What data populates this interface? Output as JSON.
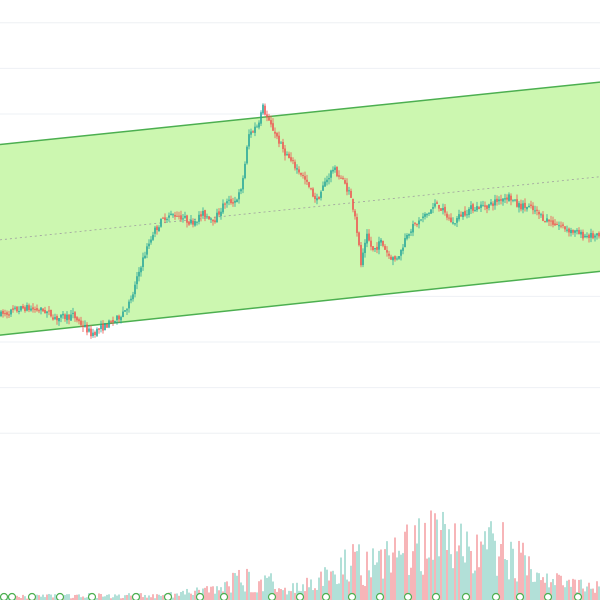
{
  "colors": {
    "background": "#ffffff",
    "grid": "#eef0f4",
    "up": "#26a69a",
    "down": "#ef5350",
    "channel_fill": "#ccf7b0",
    "channel_line": "#4caf50",
    "mid_line": "#9e9e9e",
    "volume_up": "#9fd9cf",
    "volume_down": "#f5a3a6",
    "marker": "#4caf50"
  },
  "chart_data": {
    "type": "candlestick",
    "title": "",
    "xlabel": "",
    "ylabel": "",
    "grid": true,
    "legend": "none",
    "ylim": [
      0,
      100
    ],
    "volume_ylim": [
      0,
      100
    ],
    "channel": {
      "upper": {
        "start": 68.3,
        "end": 82.0
      },
      "lower": {
        "start": 26.5,
        "end": 40.5
      }
    },
    "price_path": [
      [
        0,
        31
      ],
      [
        12,
        32.5
      ],
      [
        22,
        31.8
      ],
      [
        28,
        30.2
      ],
      [
        36,
        30.8
      ],
      [
        45,
        26.8
      ],
      [
        52,
        28.5
      ],
      [
        58,
        30
      ],
      [
        65,
        34
      ],
      [
        70,
        42
      ],
      [
        76,
        49
      ],
      [
        82,
        52.5
      ],
      [
        88,
        53
      ],
      [
        95,
        51.2
      ],
      [
        101,
        53
      ],
      [
        107,
        52
      ],
      [
        112,
        55.5
      ],
      [
        117,
        56
      ],
      [
        120,
        58
      ],
      [
        124,
        70.5
      ],
      [
        128,
        72.5
      ],
      [
        131,
        76.5
      ],
      [
        134,
        73
      ],
      [
        137,
        71
      ],
      [
        140,
        68
      ],
      [
        145,
        64.5
      ],
      [
        150,
        62
      ],
      [
        155,
        58
      ],
      [
        158,
        56
      ],
      [
        162,
        60
      ],
      [
        166,
        63
      ],
      [
        170,
        61
      ],
      [
        174,
        58
      ],
      [
        177,
        53
      ],
      [
        180,
        42
      ],
      [
        183,
        48
      ],
      [
        186,
        45
      ],
      [
        190,
        47
      ],
      [
        194,
        44
      ],
      [
        197,
        43
      ],
      [
        200,
        45
      ],
      [
        203,
        49
      ],
      [
        208,
        51
      ],
      [
        214,
        53.5
      ],
      [
        218,
        55.5
      ],
      [
        222,
        53
      ],
      [
        226,
        51
      ],
      [
        230,
        53
      ],
      [
        236,
        54.5
      ],
      [
        244,
        55
      ],
      [
        250,
        56.5
      ],
      [
        254,
        57
      ],
      [
        258,
        55
      ],
      [
        264,
        54.5
      ],
      [
        272,
        52
      ],
      [
        282,
        50
      ],
      [
        290,
        48.5
      ],
      [
        299,
        48
      ]
    ],
    "volume_path": [
      [
        0,
        2
      ],
      [
        40,
        3
      ],
      [
        80,
        3
      ],
      [
        100,
        6
      ],
      [
        110,
        9
      ],
      [
        120,
        14
      ],
      [
        135,
        12
      ],
      [
        150,
        8
      ],
      [
        165,
        16
      ],
      [
        175,
        28
      ],
      [
        185,
        22
      ],
      [
        200,
        32
      ],
      [
        210,
        38
      ],
      [
        220,
        40
      ],
      [
        230,
        36
      ],
      [
        240,
        32
      ],
      [
        250,
        36
      ],
      [
        260,
        26
      ],
      [
        270,
        16
      ],
      [
        280,
        12
      ],
      [
        299,
        8
      ]
    ],
    "candle_count": 300,
    "seed": 7
  }
}
